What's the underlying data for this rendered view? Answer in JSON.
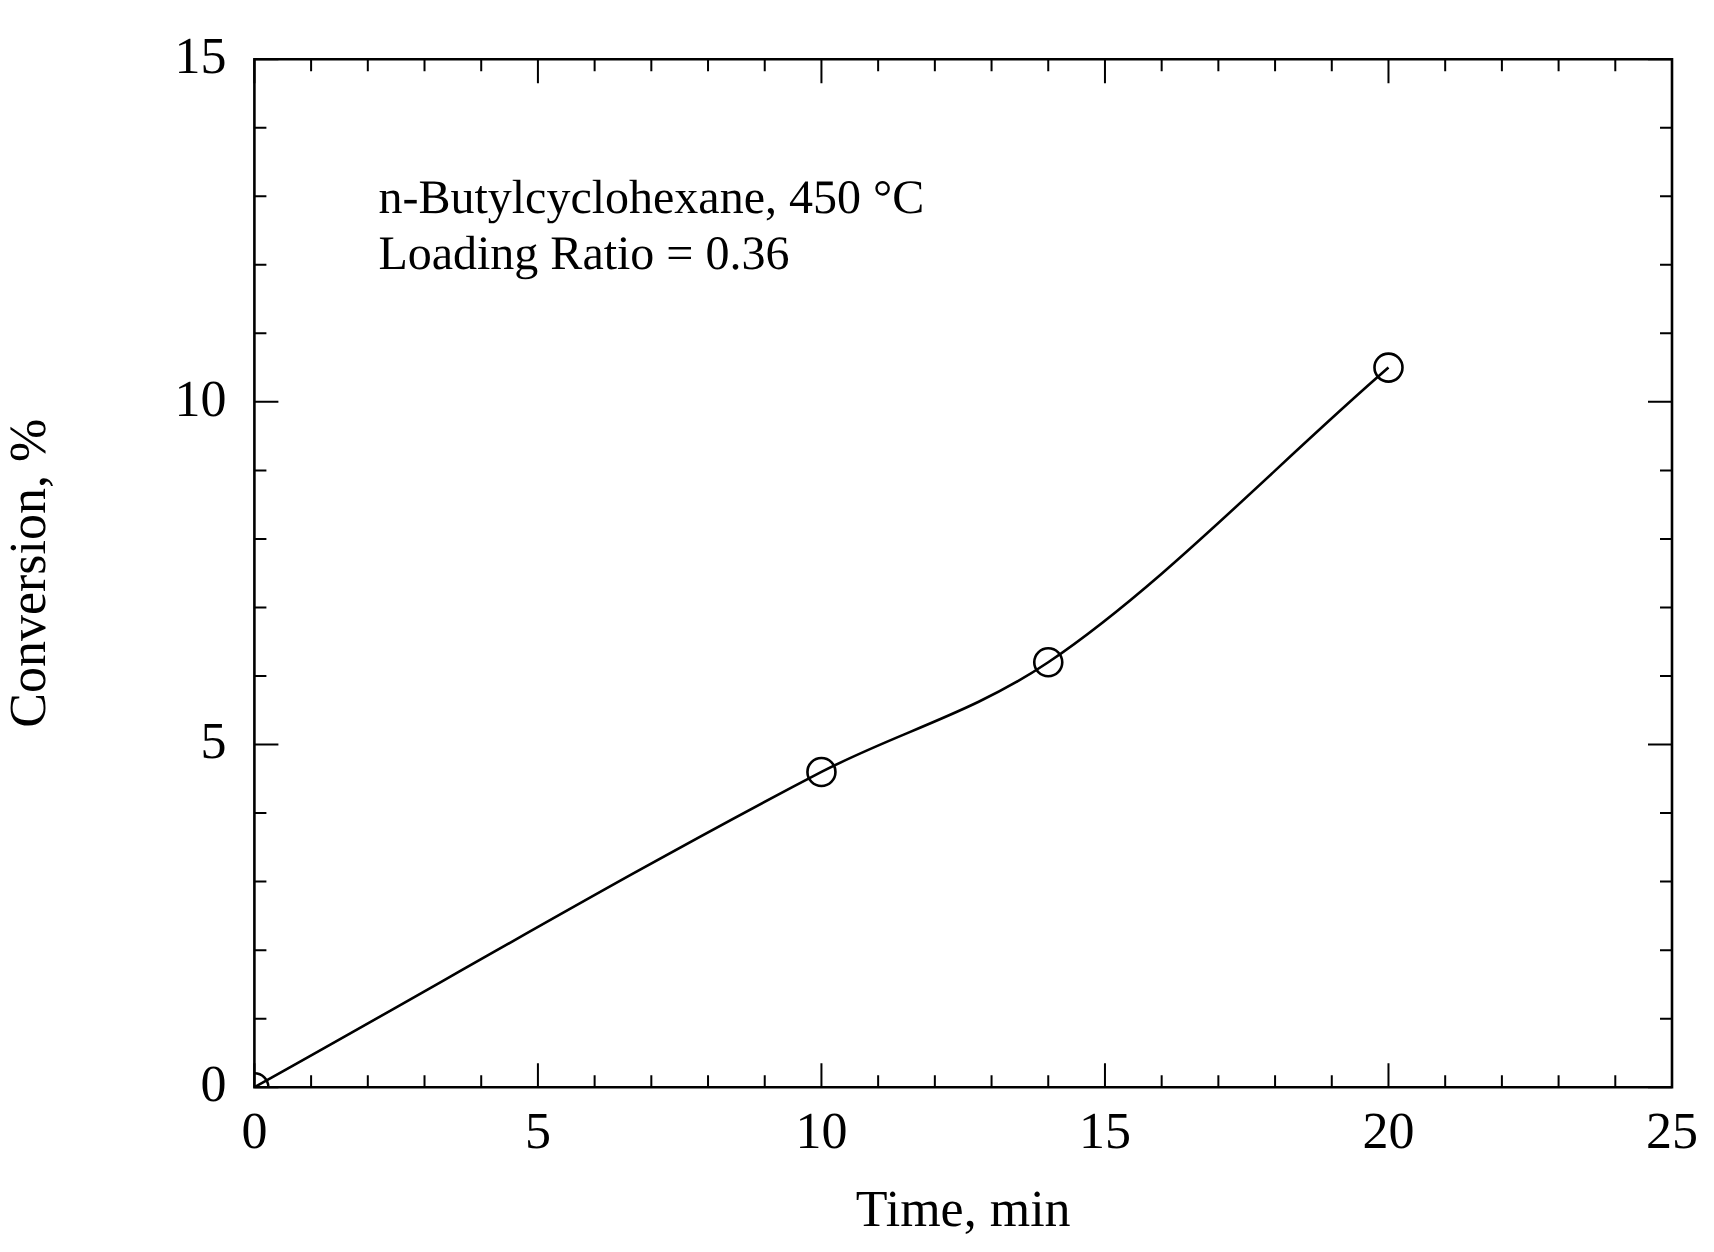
{
  "chart_data": {
    "type": "line",
    "xlabel": "Time, min",
    "ylabel": "Conversion, %",
    "x": [
      0,
      10,
      14,
      20
    ],
    "series": [
      {
        "color": "#000000",
        "values": [
          0,
          4.6,
          6.2,
          10.5
        ]
      }
    ],
    "xlim": [
      0,
      25
    ],
    "ylim": [
      0,
      15
    ],
    "xticks": [
      0,
      {
        "value": 1,
        "label": null
      },
      {
        "value": 2,
        "label": null
      },
      {
        "value": 3,
        "label": null
      },
      {
        "value": 4,
        "label": null
      },
      5,
      {
        "value": 6,
        "label": null
      },
      {
        "value": 7,
        "label": null
      },
      {
        "value": 8,
        "label": null
      },
      {
        "value": 9,
        "label": null
      },
      10,
      {
        "value": 11,
        "label": null
      },
      {
        "value": 12,
        "label": null
      },
      {
        "value": 13,
        "label": null
      },
      {
        "value": 14,
        "label": null
      },
      15,
      {
        "value": 16,
        "label": null
      },
      {
        "value": 17,
        "label": null
      },
      {
        "value": 18,
        "label": null
      },
      {
        "value": 19,
        "label": null
      },
      20,
      {
        "value": 21,
        "label": null
      },
      {
        "value": 22,
        "label": null
      },
      {
        "value": 23,
        "label": null
      },
      {
        "value": 24,
        "label": null
      },
      25
    ],
    "yticks": [
      0,
      {
        "value": 1,
        "label": null
      },
      {
        "value": 2,
        "label": null
      },
      {
        "value": 3,
        "label": null
      },
      {
        "value": 4,
        "label": null
      },
      5,
      {
        "value": 6,
        "label": null
      },
      {
        "value": 7,
        "label": null
      },
      {
        "value": 8,
        "label": null
      },
      {
        "value": 9,
        "label": null
      },
      10,
      {
        "value": 11,
        "label": null
      },
      {
        "value": 12,
        "label": null
      },
      {
        "value": 13,
        "label": null
      },
      {
        "value": 14,
        "label": null
      },
      15
    ],
    "annotations": [
      "n-Butylcyclohexane, 450 °C",
      "Loading Ratio = 0.36"
    ],
    "grid": false,
    "legend": false,
    "marker": "circle",
    "line_style": "solid"
  }
}
